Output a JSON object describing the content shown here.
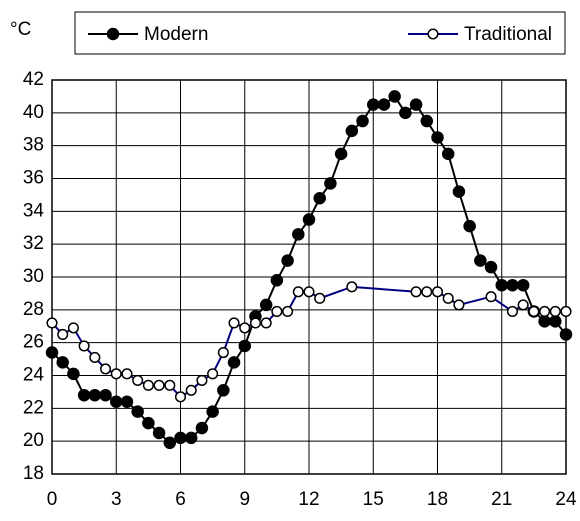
{
  "chart_data": {
    "type": "line",
    "y_label": "°C",
    "series": [
      {
        "name": "Modern",
        "color": "#000000",
        "marker": "filled",
        "x": [
          0,
          0.5,
          1,
          1.5,
          2,
          2.5,
          3,
          3.5,
          4,
          4.5,
          5,
          5.5,
          6,
          6.5,
          7,
          7.5,
          8,
          8.5,
          9,
          9.5,
          10,
          10.5,
          11,
          11.5,
          12,
          12.5,
          13,
          13.5,
          14,
          14.5,
          15,
          15.5,
          16,
          16.5,
          17,
          17.5,
          18,
          18.5,
          19,
          19.5,
          20,
          20.5,
          21,
          21.5,
          22,
          22.5,
          23,
          23.5,
          24
        ],
        "values": [
          25.4,
          24.8,
          24.1,
          22.8,
          22.8,
          22.8,
          22.4,
          22.4,
          21.8,
          21.1,
          20.5,
          19.9,
          20.2,
          20.2,
          20.8,
          21.8,
          23.1,
          24.8,
          25.8,
          27.6,
          28.3,
          29.8,
          31.0,
          32.6,
          33.5,
          34.8,
          35.7,
          37.5,
          38.9,
          39.5,
          40.5,
          40.5,
          41.0,
          40.0,
          40.5,
          39.5,
          38.5,
          37.5,
          35.2,
          33.1,
          31.0,
          30.6,
          29.5,
          29.5,
          29.5,
          27.9,
          27.3,
          27.3,
          26.5
        ]
      },
      {
        "name": "Traditional",
        "color": "#000080",
        "marker": "open",
        "x": [
          0,
          0.5,
          1,
          1.5,
          2,
          2.5,
          3,
          3.5,
          4,
          4.5,
          5,
          5.5,
          6,
          6.5,
          7,
          7.5,
          8,
          8.5,
          9,
          9.5,
          10,
          10.5,
          11,
          11.5,
          12,
          12.5,
          14,
          17,
          17.5,
          18,
          18.5,
          19,
          20.5,
          21.5,
          22,
          22.5,
          23,
          23.5,
          24
        ],
        "values": [
          27.2,
          26.5,
          26.9,
          25.8,
          25.1,
          24.4,
          24.1,
          24.1,
          23.7,
          23.4,
          23.4,
          23.4,
          22.7,
          23.1,
          23.7,
          24.1,
          25.4,
          27.2,
          26.9,
          27.2,
          27.2,
          27.9,
          27.9,
          29.1,
          29.1,
          28.7,
          29.4,
          29.1,
          29.1,
          29.1,
          28.7,
          28.3,
          28.8,
          27.9,
          28.3,
          27.9,
          27.9,
          27.9,
          27.9
        ]
      }
    ],
    "xlim": [
      0,
      24
    ],
    "xticks": [
      0,
      3,
      6,
      9,
      12,
      15,
      18,
      21,
      24
    ],
    "ylim": [
      18,
      42
    ],
    "yticks": [
      18,
      20,
      22,
      24,
      26,
      28,
      30,
      32,
      34,
      36,
      38,
      40,
      42
    ],
    "grid": true
  }
}
